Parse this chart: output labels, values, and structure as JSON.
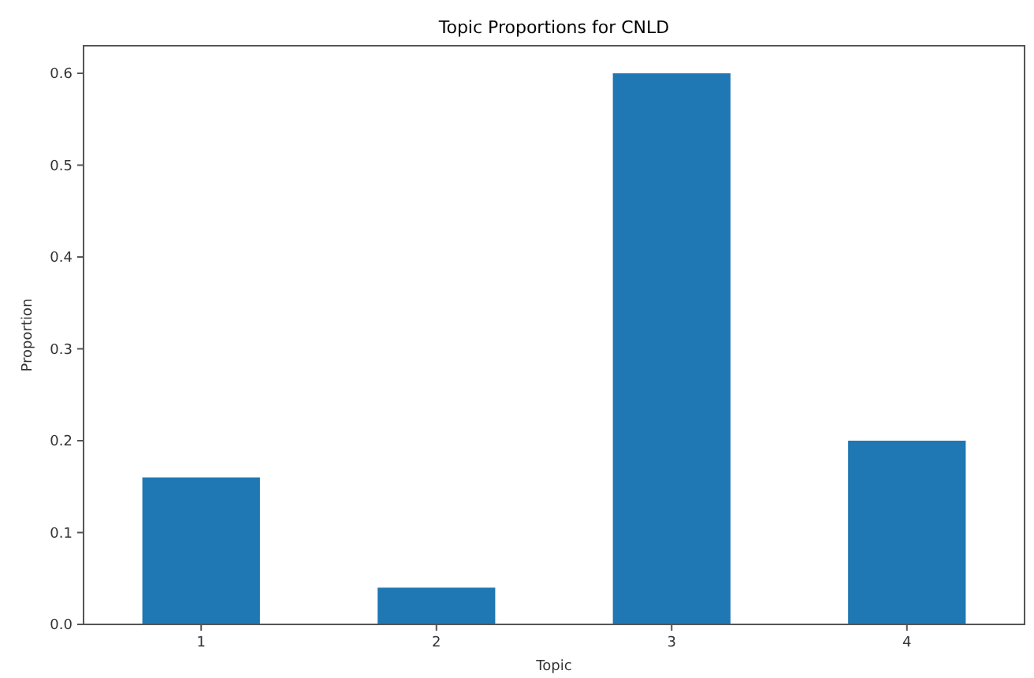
{
  "chart_data": {
    "type": "bar",
    "title": "Topic Proportions for CNLD",
    "xlabel": "Topic",
    "ylabel": "Proportion",
    "categories": [
      "1",
      "2",
      "3",
      "4"
    ],
    "values": [
      0.16,
      0.04,
      0.6,
      0.2
    ],
    "color": "#1f77b4",
    "ylim": [
      0,
      0.63
    ],
    "yticks": [
      {
        "value": 0,
        "label": "0.0"
      },
      {
        "value": 0.1,
        "label": "0.1"
      },
      {
        "value": 0.2,
        "label": "0.2"
      },
      {
        "value": 0.3,
        "label": "0.3"
      },
      {
        "value": 0.4,
        "label": "0.4"
      },
      {
        "value": 0.5,
        "label": "0.5"
      },
      {
        "value": 0.6,
        "label": "0.6"
      }
    ],
    "grid": false
  }
}
